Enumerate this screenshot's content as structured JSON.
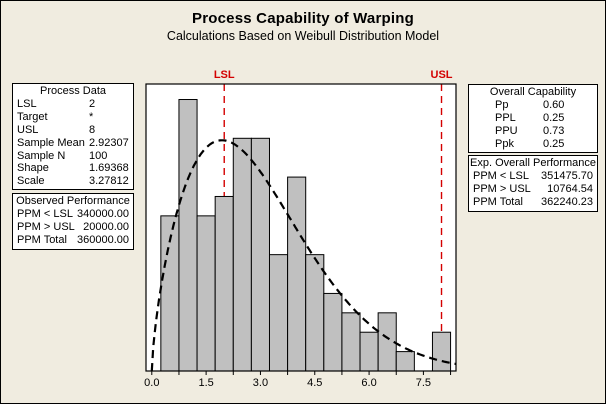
{
  "title": "Process Capability of Warping",
  "subtitle": "Calculations Based on Weibull Distribution Model",
  "colors": {
    "background": "#F0ECE0",
    "panel_bg": "#FFFFFF",
    "plot_bg": "#FFFFFF",
    "frame_stroke": "#000000",
    "bar_fill": "#C0C0C0",
    "bar_stroke": "#000000",
    "spec_line": "#D40000",
    "curve": "#000000",
    "text": "#000000"
  },
  "panels": {
    "process_data": {
      "title": "Process Data",
      "rows": [
        {
          "label": "LSL",
          "value": "2"
        },
        {
          "label": "Target",
          "value": "*"
        },
        {
          "label": "USL",
          "value": "8"
        },
        {
          "label": "Sample Mean",
          "value": "2.92307"
        },
        {
          "label": "Sample N",
          "value": "100"
        },
        {
          "label": "Shape",
          "value": "1.69368"
        },
        {
          "label": "Scale",
          "value": "3.27812"
        }
      ]
    },
    "observed_performance": {
      "title": "Observed Performance",
      "rows": [
        {
          "label": "PPM < LSL",
          "value": "340000.00"
        },
        {
          "label": "PPM > USL",
          "value": "20000.00"
        },
        {
          "label": "PPM Total",
          "value": "360000.00"
        }
      ]
    },
    "overall_capability": {
      "title": "Overall Capability",
      "rows": [
        {
          "label": "Pp",
          "value": "0.60"
        },
        {
          "label": "PPL",
          "value": "0.25"
        },
        {
          "label": "PPU",
          "value": "0.73"
        },
        {
          "label": "Ppk",
          "value": "0.25"
        }
      ]
    },
    "exp_overall_performance": {
      "title": "Exp. Overall Performance",
      "rows": [
        {
          "label": "PPM < LSL",
          "value": "351475.70"
        },
        {
          "label": "PPM > USL",
          "value": "10764.54"
        },
        {
          "label": "PPM Total",
          "value": "362240.23"
        }
      ]
    }
  },
  "chart_data": {
    "type": "bar",
    "subtype": "histogram-with-fitted-curve",
    "title": "Process Capability of Warping",
    "xlabel": "",
    "ylabel": "",
    "histogram": {
      "bin_width": 0.5,
      "bin_centers": [
        0.5,
        1.0,
        1.5,
        2.0,
        2.5,
        3.0,
        3.5,
        4.0,
        4.5,
        5.0,
        5.5,
        6.0,
        6.5,
        7.0,
        7.5,
        8.0
      ],
      "counts": [
        8,
        14,
        8,
        9,
        12,
        12,
        6,
        10,
        6,
        4,
        3,
        2,
        3,
        1,
        0,
        2
      ]
    },
    "curve": {
      "name": "Weibull distribution fit",
      "shape": 1.69368,
      "scale": 3.27812,
      "sample_n": 100,
      "style": "dashed-black"
    },
    "spec_limits": [
      {
        "label": "LSL",
        "value": 2
      },
      {
        "label": "USL",
        "value": 8
      }
    ],
    "x_axis": {
      "range": [
        -0.16,
        8.4
      ],
      "tick_values": [
        0,
        1.5,
        3,
        4.5,
        6,
        7.5
      ],
      "tick_labels": [
        "0.0",
        "1.5",
        "3.0",
        "4.5",
        "6.0",
        "7.5"
      ],
      "minor_tick_step": 0.75
    },
    "y_axis": {
      "range_counts": [
        0,
        14.8
      ],
      "labels_shown": false,
      "grid": false
    },
    "legend_position": "none"
  }
}
